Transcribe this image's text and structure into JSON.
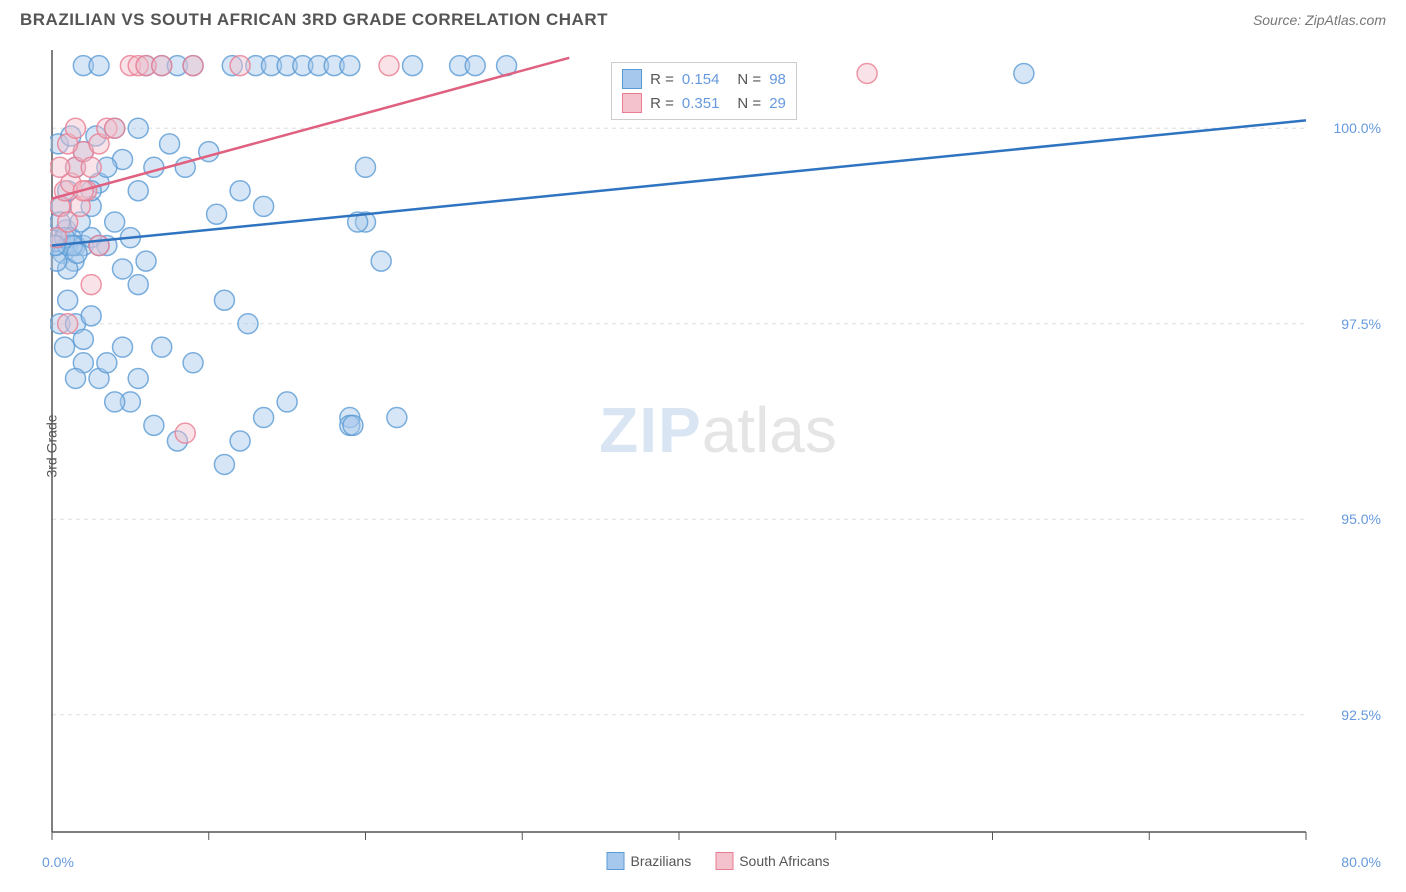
{
  "header": {
    "title": "BRAZILIAN VS SOUTH AFRICAN 3RD GRADE CORRELATION CHART",
    "source": "Source: ZipAtlas.com"
  },
  "watermark": {
    "part1": "ZIP",
    "part2": "atlas"
  },
  "chart": {
    "type": "scatter",
    "ylabel": "3rd Grade",
    "background_color": "#ffffff",
    "grid_color": "#dddddd",
    "axis_color": "#555555",
    "tick_label_color": "#6699dd",
    "xlim": [
      0,
      80
    ],
    "ylim": [
      91,
      101
    ],
    "xtick_positions": [
      0,
      10,
      20,
      30,
      40,
      50,
      60,
      70,
      80
    ],
    "xtick_labels_shown": {
      "0": "0.0%",
      "80": "80.0%"
    },
    "ytick_positions": [
      92.5,
      95.0,
      97.5,
      100.0
    ],
    "ytick_labels": [
      "92.5%",
      "95.0%",
      "97.5%",
      "100.0%"
    ],
    "marker_radius": 10,
    "marker_opacity": 0.45,
    "line_width": 2.5,
    "series": [
      {
        "name": "Brazilians",
        "color_fill": "#a6c8ec",
        "color_stroke": "#5b9bd5",
        "line_color": "#2f74c0",
        "R": "0.154",
        "N": "98",
        "trend_line": {
          "x1": 0,
          "y1": 98.5,
          "x2": 80,
          "y2": 100.1
        },
        "points": [
          [
            0.3,
            98.5
          ],
          [
            0.5,
            98.6
          ],
          [
            0.7,
            98.4
          ],
          [
            0.9,
            98.7
          ],
          [
            1.0,
            98.5
          ],
          [
            1.2,
            98.6
          ],
          [
            1.4,
            98.3
          ],
          [
            0.5,
            97.5
          ],
          [
            0.8,
            97.2
          ],
          [
            1.0,
            97.8
          ],
          [
            1.5,
            97.5
          ],
          [
            2.0,
            97.3
          ],
          [
            2.5,
            97.6
          ],
          [
            0.6,
            99.0
          ],
          [
            1.0,
            99.2
          ],
          [
            1.5,
            99.5
          ],
          [
            2.0,
            99.7
          ],
          [
            2.5,
            99.0
          ],
          [
            3.0,
            99.3
          ],
          [
            0.4,
            99.8
          ],
          [
            1.2,
            99.9
          ],
          [
            2.8,
            99.9
          ],
          [
            4.0,
            100.0
          ],
          [
            5.5,
            100.0
          ],
          [
            2.0,
            100.8
          ],
          [
            3.0,
            100.8
          ],
          [
            3.5,
            98.5
          ],
          [
            4.0,
            98.8
          ],
          [
            4.5,
            98.2
          ],
          [
            5.0,
            98.6
          ],
          [
            5.5,
            98.0
          ],
          [
            6.0,
            98.3
          ],
          [
            6.0,
            100.8
          ],
          [
            7.0,
            100.8
          ],
          [
            8.0,
            100.8
          ],
          [
            8.5,
            99.5
          ],
          [
            9.0,
            100.8
          ],
          [
            10.0,
            99.7
          ],
          [
            10.5,
            98.9
          ],
          [
            11.0,
            97.8
          ],
          [
            11.5,
            100.8
          ],
          [
            12.0,
            99.2
          ],
          [
            12.5,
            97.5
          ],
          [
            13.0,
            100.8
          ],
          [
            13.5,
            99.0
          ],
          [
            14.0,
            100.8
          ],
          [
            15.0,
            100.8
          ],
          [
            16.0,
            100.8
          ],
          [
            17.0,
            100.8
          ],
          [
            5.0,
            96.5
          ],
          [
            6.5,
            96.2
          ],
          [
            8.0,
            96.0
          ],
          [
            3.0,
            96.8
          ],
          [
            4.0,
            96.5
          ],
          [
            9.0,
            97.0
          ],
          [
            12.0,
            96.0
          ],
          [
            13.5,
            96.3
          ],
          [
            15.0,
            96.5
          ],
          [
            19.0,
            96.3
          ],
          [
            20.0,
            98.8
          ],
          [
            18.0,
            100.8
          ],
          [
            19.0,
            100.8
          ],
          [
            20.0,
            99.5
          ],
          [
            21.0,
            98.3
          ],
          [
            22.0,
            96.3
          ],
          [
            23.0,
            100.8
          ],
          [
            26.0,
            100.8
          ],
          [
            27.0,
            100.8
          ],
          [
            29.0,
            100.8
          ],
          [
            62.0,
            100.7
          ],
          [
            11.0,
            95.7
          ],
          [
            19.0,
            96.2
          ],
          [
            19.2,
            96.2
          ],
          [
            19.5,
            98.8
          ],
          [
            1.5,
            98.5
          ],
          [
            2.0,
            98.5
          ],
          [
            2.5,
            98.6
          ],
          [
            3.0,
            98.5
          ],
          [
            1.0,
            98.2
          ],
          [
            1.8,
            98.8
          ],
          [
            0.5,
            98.8
          ],
          [
            0.3,
            98.3
          ],
          [
            0.8,
            98.6
          ],
          [
            1.3,
            98.5
          ],
          [
            1.6,
            98.4
          ],
          [
            0.2,
            98.5
          ],
          [
            3.5,
            97.0
          ],
          [
            5.5,
            96.8
          ],
          [
            7.0,
            97.2
          ],
          [
            2.0,
            97.0
          ],
          [
            1.5,
            96.8
          ],
          [
            4.5,
            97.2
          ],
          [
            6.5,
            99.5
          ],
          [
            7.5,
            99.8
          ],
          [
            4.5,
            99.6
          ],
          [
            5.5,
            99.2
          ],
          [
            3.5,
            99.5
          ],
          [
            2.5,
            99.2
          ]
        ]
      },
      {
        "name": "South Africans",
        "color_fill": "#f4c2cc",
        "color_stroke": "#e87d92",
        "line_color": "#e06080",
        "R": "0.351",
        "N": "29",
        "trend_line": {
          "x1": 0,
          "y1": 99.1,
          "x2": 33,
          "y2": 100.9
        },
        "points": [
          [
            0.3,
            98.6
          ],
          [
            0.5,
            99.0
          ],
          [
            0.8,
            99.2
          ],
          [
            1.0,
            98.8
          ],
          [
            1.2,
            99.3
          ],
          [
            1.5,
            99.5
          ],
          [
            1.8,
            99.0
          ],
          [
            2.0,
            99.7
          ],
          [
            2.2,
            99.2
          ],
          [
            2.5,
            99.5
          ],
          [
            0.5,
            99.5
          ],
          [
            1.0,
            99.8
          ],
          [
            1.5,
            100.0
          ],
          [
            2.0,
            99.2
          ],
          [
            3.0,
            99.8
          ],
          [
            3.5,
            100.0
          ],
          [
            4.0,
            100.0
          ],
          [
            5.0,
            100.8
          ],
          [
            5.5,
            100.8
          ],
          [
            6.0,
            100.8
          ],
          [
            7.0,
            100.8
          ],
          [
            9.0,
            100.8
          ],
          [
            12.0,
            100.8
          ],
          [
            21.5,
            100.8
          ],
          [
            52.0,
            100.7
          ],
          [
            8.5,
            96.1
          ],
          [
            1.0,
            97.5
          ],
          [
            2.5,
            98.0
          ],
          [
            3.0,
            98.5
          ]
        ]
      }
    ],
    "legend_position": "bottom-center",
    "inner_legend_position": "top-center"
  }
}
